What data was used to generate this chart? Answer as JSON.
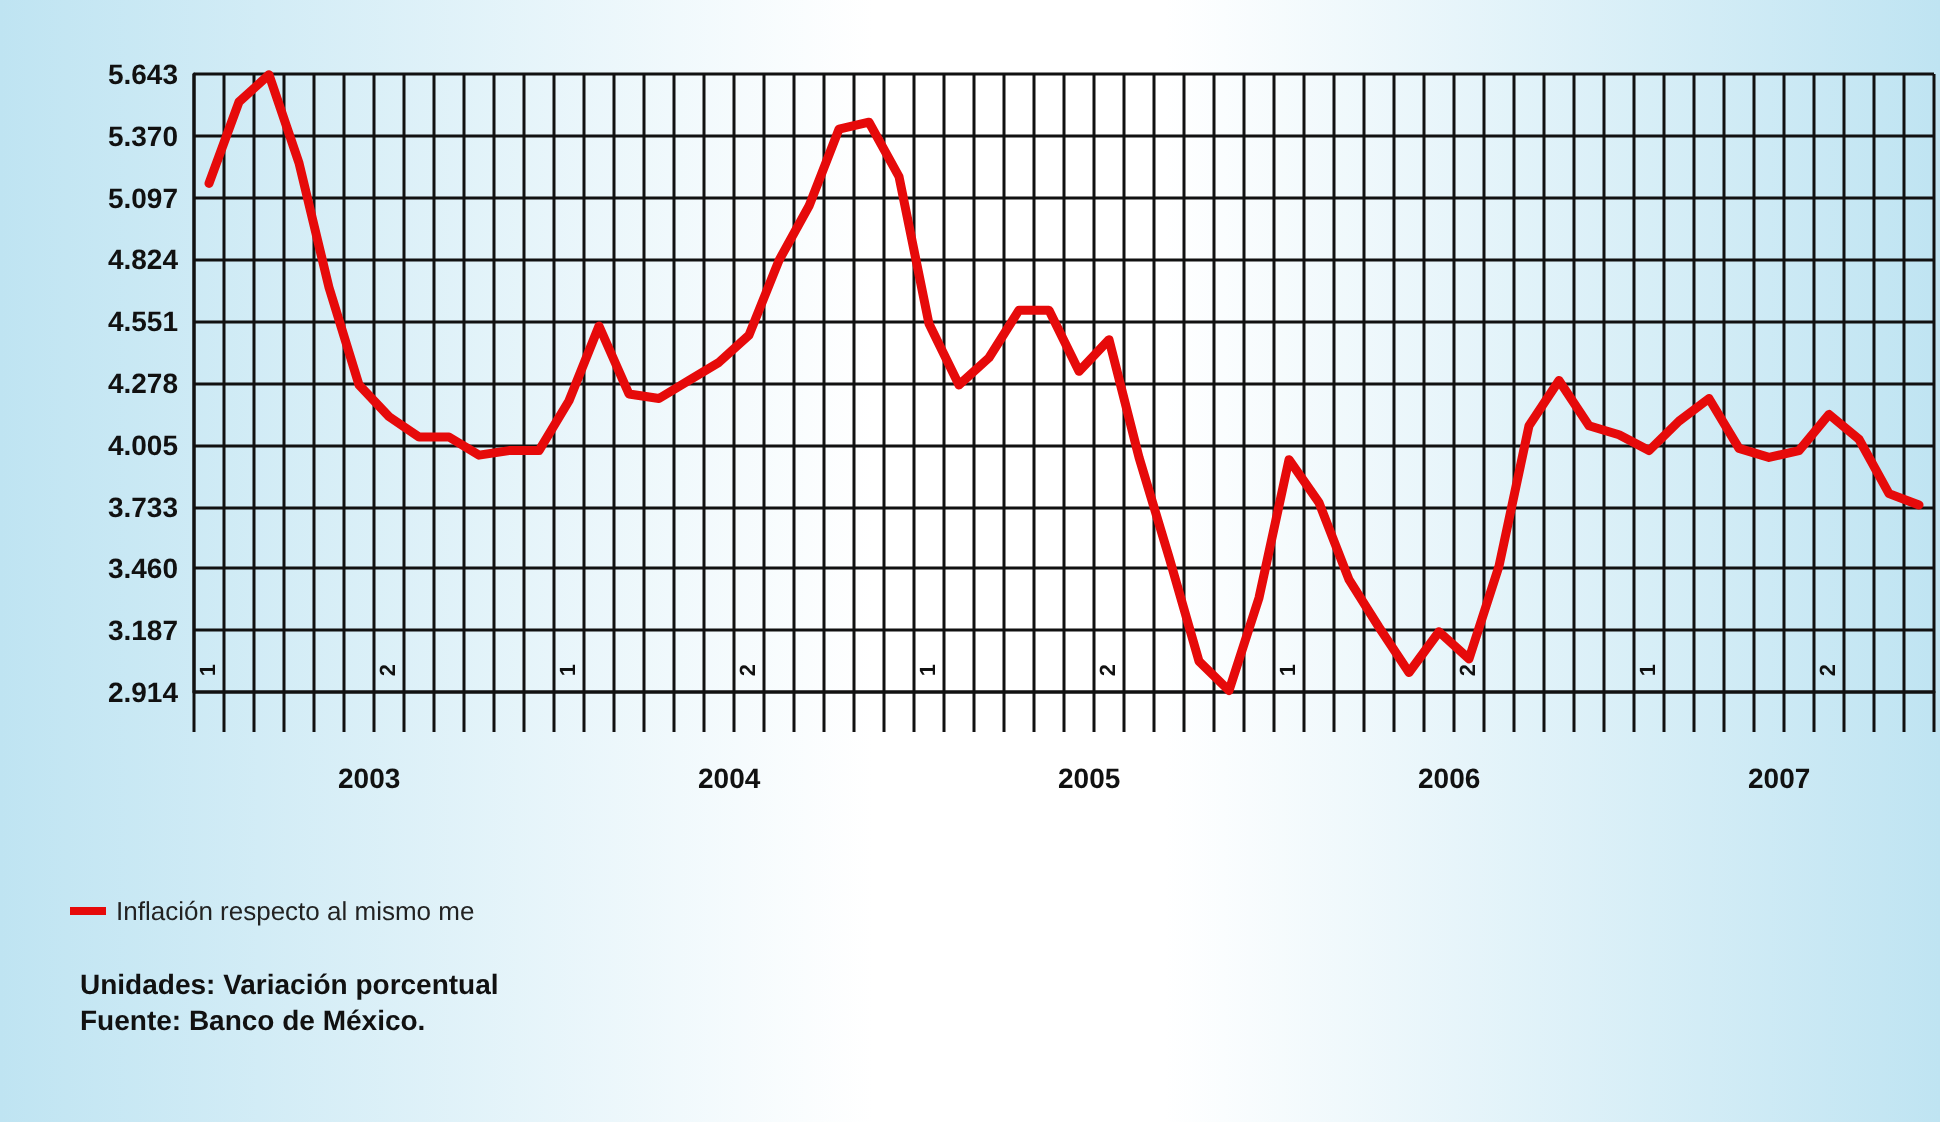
{
  "chart_data": {
    "type": "line",
    "categories": [
      "1",
      null,
      null,
      null,
      null,
      null,
      "2",
      null,
      null,
      null,
      null,
      null,
      "1",
      null,
      null,
      null,
      null,
      null,
      "2",
      null,
      null,
      null,
      null,
      null,
      "1",
      null,
      null,
      null,
      null,
      null,
      "2",
      null,
      null,
      null,
      null,
      null,
      "1",
      null,
      null,
      null,
      null,
      null,
      "2",
      null,
      null,
      null,
      null,
      null,
      "1",
      null,
      null,
      null,
      null,
      null,
      "2",
      null,
      null,
      null
    ],
    "series": [
      {
        "name": "Inflación respecto al mismo me",
        "color": "#e60a0a",
        "values": [
          5.16,
          5.52,
          5.64,
          5.25,
          4.7,
          4.27,
          4.13,
          4.04,
          4.04,
          3.96,
          3.98,
          3.98,
          4.2,
          4.53,
          4.23,
          4.21,
          4.29,
          4.37,
          4.49,
          4.82,
          5.06,
          5.4,
          5.43,
          5.19,
          4.54,
          4.27,
          4.39,
          4.6,
          4.6,
          4.33,
          4.47,
          3.95,
          3.51,
          3.05,
          2.92,
          3.33,
          3.94,
          3.75,
          3.41,
          3.2,
          3.0,
          3.18,
          3.06,
          3.47,
          4.09,
          4.29,
          4.09,
          4.05,
          3.98,
          4.11,
          4.21,
          3.99,
          3.95,
          3.98,
          4.14,
          4.03,
          3.79,
          3.74
        ]
      }
    ],
    "ylim": [
      2.914,
      5.643
    ],
    "yticks": [
      2.914,
      3.187,
      {
        "value": 3.46,
        "label": "3.460"
      },
      3.733,
      4.005,
      4.278,
      4.551,
      4.824,
      5.097,
      {
        "value": 5.37,
        "label": "5.370"
      },
      5.643
    ],
    "grid": true,
    "legend": "bottom left",
    "marker": "none",
    "line_style": "solid",
    "annotations": [
      "2003",
      "2004",
      "2005",
      "2006",
      "2007",
      "Unidades: Variación porcentual",
      "Fuente: Banco de México."
    ]
  }
}
